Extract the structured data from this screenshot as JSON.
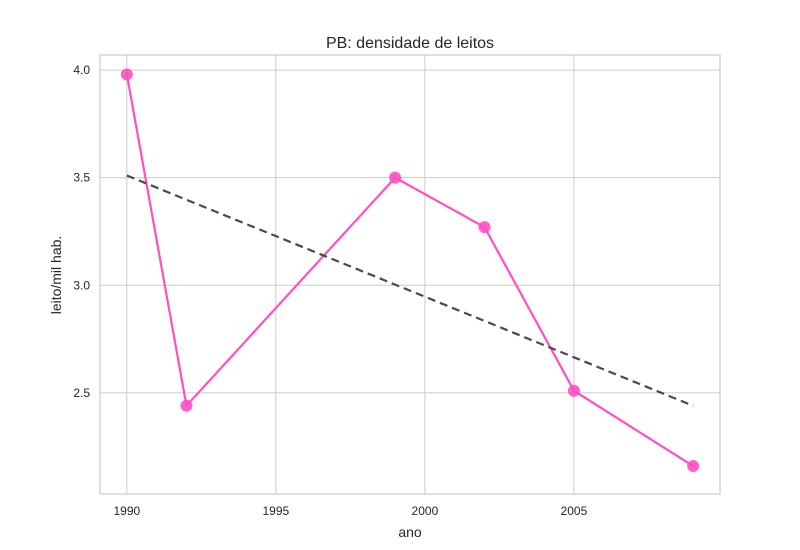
{
  "chart_data": {
    "type": "line",
    "title": "PB: densidade de leitos",
    "xlabel": "ano",
    "ylabel": "leito/mil hab.",
    "xlim": [
      1989.1,
      2009.9
    ],
    "ylim": [
      2.03,
      4.07
    ],
    "x_ticks": [
      1990,
      1995,
      2000,
      2005
    ],
    "y_ticks": [
      2.5,
      3.0,
      3.5,
      4.0
    ],
    "x_tick_labels": [
      "1990",
      "1995",
      "2000",
      "2005"
    ],
    "y_tick_labels": [
      "2.5",
      "3.0",
      "3.5",
      "4.0"
    ],
    "grid": true,
    "series": [
      {
        "kind": "data",
        "style": "solid-with-markers",
        "color": "#ff4fc3",
        "x": [
          1990,
          1992,
          1999,
          2002,
          2005,
          2009
        ],
        "y": [
          3.98,
          2.44,
          3.5,
          3.27,
          2.51,
          2.16
        ]
      },
      {
        "kind": "trend",
        "style": "dashed",
        "color": "#4a4a4a",
        "x": [
          1990,
          2009
        ],
        "y": [
          3.51,
          2.44
        ]
      }
    ]
  }
}
